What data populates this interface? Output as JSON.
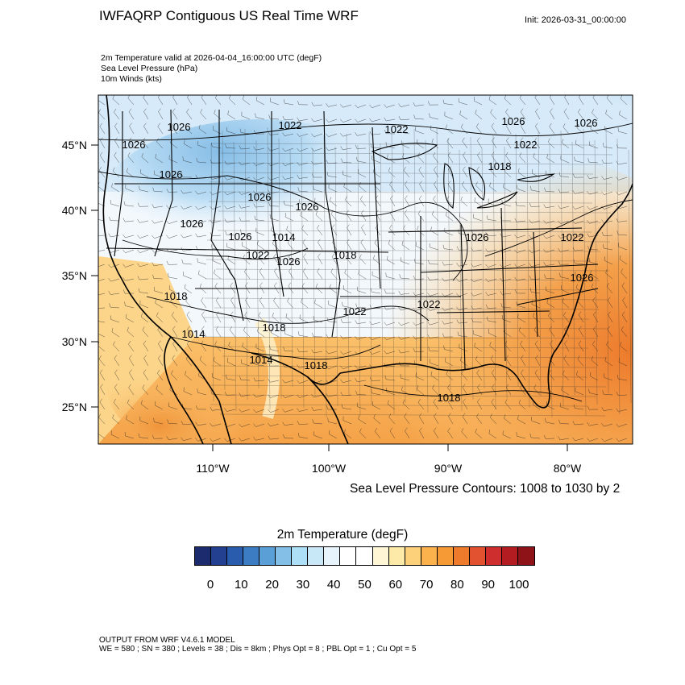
{
  "header": {
    "title": "IWFAQRP Contiguous US Real Time WRF",
    "init": "Init: 2026-03-31_00:00:00"
  },
  "fields": [
    "2m Temperature valid at 2026-04-04_16:00:00 UTC   (degF)",
    "Sea Level Pressure   (hPa)",
    "10m Winds   (kts)"
  ],
  "map": {
    "lat_ticks": [
      "45°N",
      "40°N",
      "35°N",
      "30°N",
      "25°N"
    ],
    "lon_ticks": [
      "110°W",
      "100°W",
      "90°W",
      "80°W"
    ],
    "slp_labels": [
      "1026",
      "1022",
      "1022",
      "1026",
      "1026",
      "1022",
      "1026",
      "1026",
      "1026",
      "1026",
      "1018",
      "1026",
      "1026",
      "1026",
      "1026",
      "1014",
      "1022",
      "1018",
      "1018",
      "1022",
      "1022",
      "1014",
      "1018",
      "1014",
      "1018",
      "1018",
      "1026",
      "1022"
    ]
  },
  "contour_note": "Sea Level Pressure Contours: 1008 to 1030 by 2",
  "colorbar": {
    "title": "2m Temperature  (degF)",
    "labels": [
      "0",
      "10",
      "20",
      "30",
      "40",
      "50",
      "60",
      "70",
      "80",
      "90",
      "100"
    ],
    "colors": [
      "#1c2a6e",
      "#233f8f",
      "#2a5cad",
      "#3b7cc3",
      "#5aa0d7",
      "#83bfe6",
      "#ade0f7",
      "#c9e8f7",
      "#e8f4fb",
      "#ffffff",
      "#ffffff",
      "#fff6d6",
      "#fde9a8",
      "#fdd17a",
      "#fbb24d",
      "#f59a35",
      "#ee7b2c",
      "#e35230",
      "#cf2e2e",
      "#b31d22",
      "#8e1318"
    ]
  },
  "footer": {
    "line1": "OUTPUT FROM WRF V4.6.1 MODEL",
    "line2": "WE = 580 ; SN = 380 ; Levels = 38 ; Dis = 8km ; Phys Opt = 8 ; PBL Opt = 1 ; Cu Opt = 5"
  }
}
